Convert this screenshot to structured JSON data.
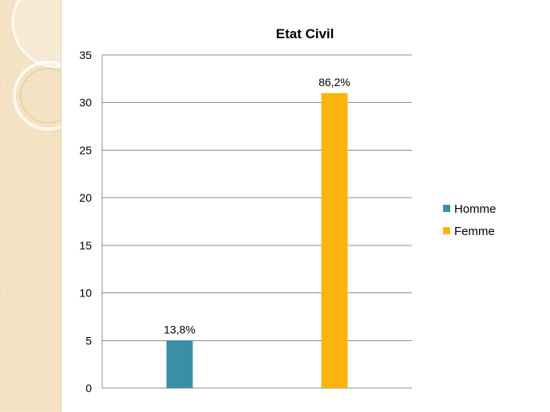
{
  "chart_data": {
    "type": "bar",
    "title": "Etat Civil",
    "xlabel": "",
    "ylabel": "",
    "ylim": [
      0,
      35
    ],
    "yticks": [
      0,
      5,
      10,
      15,
      20,
      25,
      30,
      35
    ],
    "grid": true,
    "legend_position": "right",
    "series": [
      {
        "name": "Homme",
        "color": "#3a8fa4",
        "value": 5,
        "label": "13,8%"
      },
      {
        "name": "Femme",
        "color": "#fbb40e",
        "value": 31,
        "label": "86,2%"
      }
    ]
  },
  "decoration": {
    "strip_color": "#f4e2c1",
    "ring_color": "#ffffff"
  }
}
